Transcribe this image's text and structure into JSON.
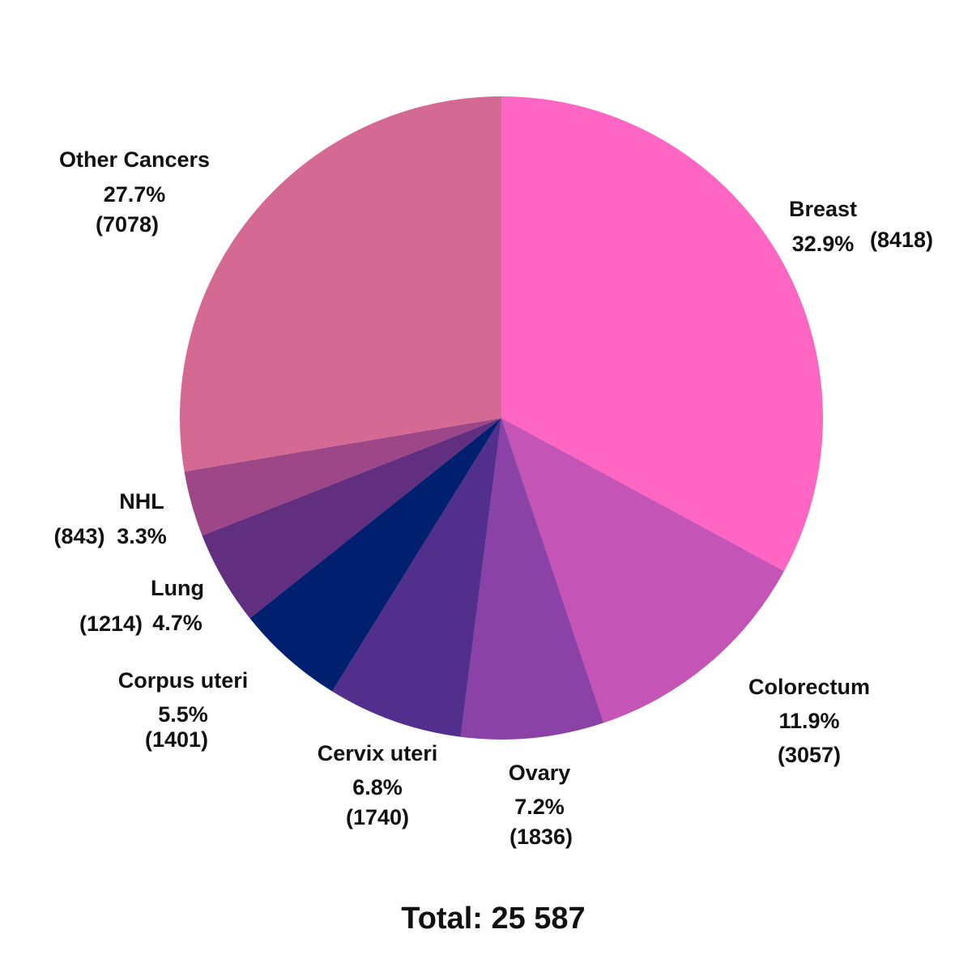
{
  "chart_data": {
    "type": "pie",
    "total_label": "Total: 25 587",
    "slices": [
      {
        "category": "Breast",
        "percent_label": "32.9%",
        "count_label": "(8418)",
        "value": 8418,
        "color": "#ff66c4"
      },
      {
        "category": "Colorectum",
        "percent_label": "11.9%",
        "count_label": "(3057)",
        "value": 3057,
        "color": "#c455b7"
      },
      {
        "category": "Ovary",
        "percent_label": "7.2%",
        "count_label": "(1836)",
        "value": 1836,
        "color": "#8b42a6"
      },
      {
        "category": "Cervix uteri",
        "percent_label": "6.8%",
        "count_label": "(1740)",
        "value": 1740,
        "color": "#522f8c"
      },
      {
        "category": "Corpus uteri",
        "percent_label": "5.5%",
        "count_label": "(1401)",
        "value": 1401,
        "color": "#001f6e"
      },
      {
        "category": "Lung",
        "percent_label": "4.7%",
        "count_label": "(1214)",
        "value": 1214,
        "color": "#622f80"
      },
      {
        "category": "NHL",
        "percent_label": "3.3%",
        "count_label": "(843)",
        "value": 843,
        "color": "#9d4788"
      },
      {
        "category": "Other Cancers",
        "percent_label": "27.7%",
        "count_label": "(7078)",
        "value": 7078,
        "color": "#d46a94"
      }
    ]
  }
}
